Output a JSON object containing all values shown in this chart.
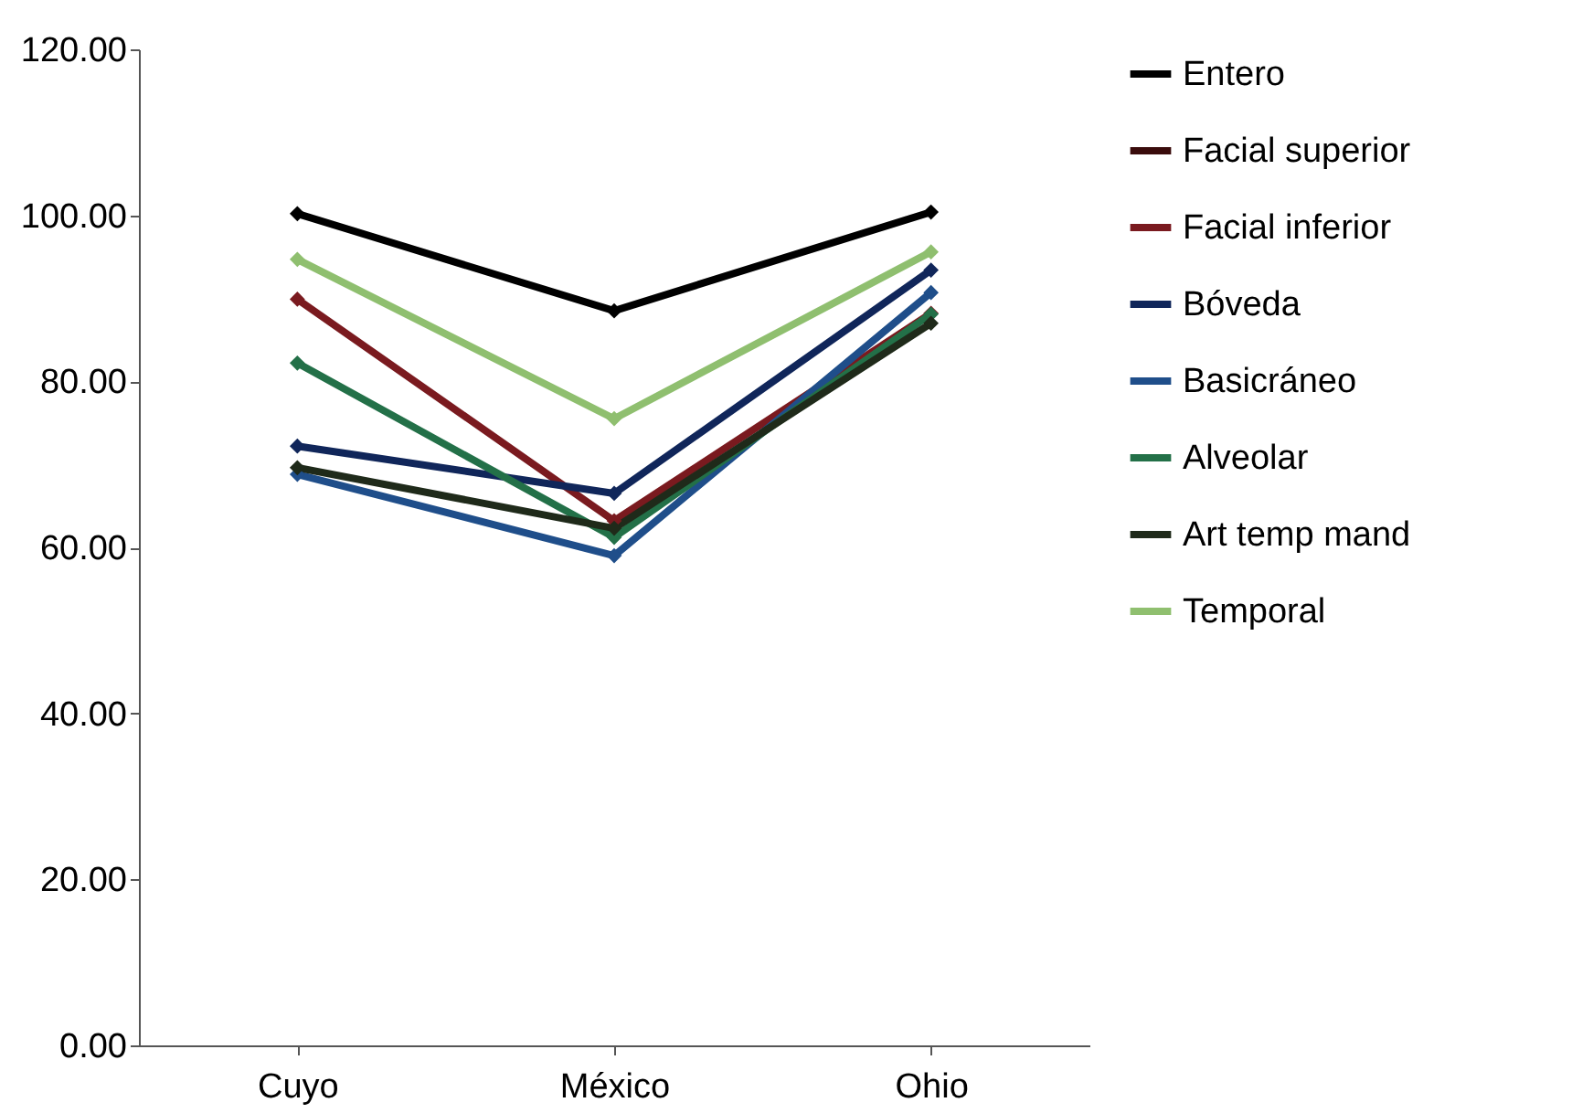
{
  "chart_data": {
    "type": "line",
    "categories": [
      "Cuyo",
      "México",
      "Ohio"
    ],
    "series": [
      {
        "name": "Entero",
        "color": "#000000",
        "values": [
          100.2,
          88.5,
          100.4
        ]
      },
      {
        "name": "Facial superior",
        "color": "#3a0c0c",
        "values": [
          null,
          null,
          null
        ]
      },
      {
        "name": "Facial inferior",
        "color": "#7a1a1f",
        "values": [
          89.9,
          63.2,
          88.2
        ]
      },
      {
        "name": "Bóveda",
        "color": "#10265a",
        "values": [
          72.2,
          66.5,
          93.4
        ]
      },
      {
        "name": "Basicráneo",
        "color": "#1f4e8a",
        "values": [
          68.8,
          59.0,
          90.7
        ]
      },
      {
        "name": "Alveolar",
        "color": "#237048",
        "values": [
          82.2,
          61.2,
          88.1
        ]
      },
      {
        "name": "Art temp mand",
        "color": "#1f2a1a",
        "values": [
          69.6,
          62.3,
          87.0
        ]
      },
      {
        "name": "Temporal",
        "color": "#8fbf6f",
        "values": [
          94.7,
          75.5,
          95.6
        ]
      }
    ],
    "ylim": [
      0,
      120
    ],
    "yticks": [
      {
        "value": 0,
        "label": "0.00"
      },
      {
        "value": 20,
        "label": "20.00"
      },
      {
        "value": 40,
        "label": "40.00"
      },
      {
        "value": 60,
        "label": "60.00"
      },
      {
        "value": 80,
        "label": "80.00"
      },
      {
        "value": 100,
        "label": "100.00"
      },
      {
        "value": 120,
        "label": "120.00"
      }
    ],
    "legend": "right",
    "marker": "diamond",
    "line_style": "solid",
    "grid": false
  }
}
